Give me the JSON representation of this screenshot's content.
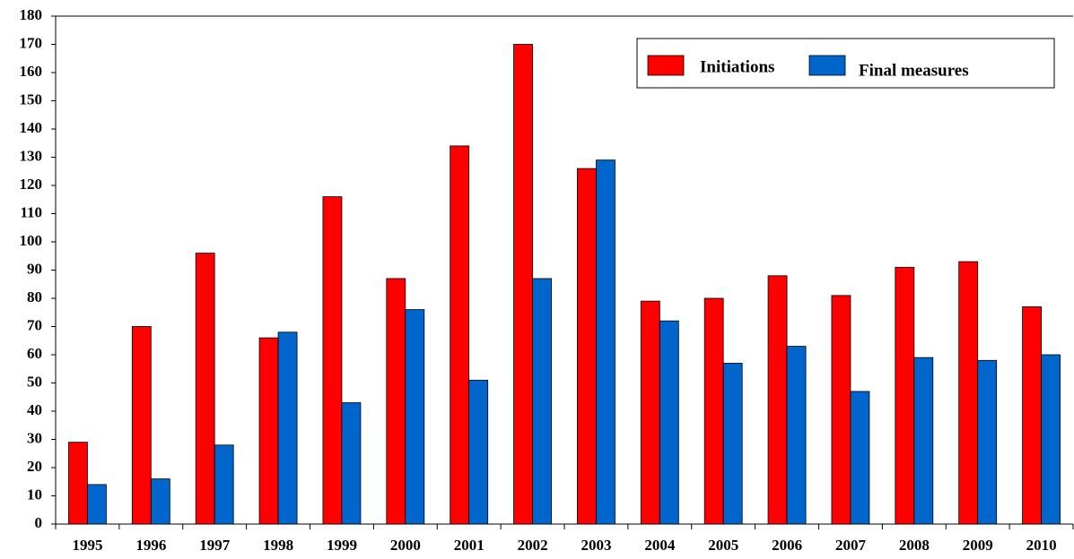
{
  "chart_data": {
    "type": "bar",
    "categories": [
      "1995",
      "1996",
      "1997",
      "1998",
      "1999",
      "2000",
      "2001",
      "2002",
      "2003",
      "2004",
      "2005",
      "2006",
      "2007",
      "2008",
      "2009",
      "2010"
    ],
    "series": [
      {
        "name": "Initiations",
        "color": "#ff0000",
        "values": [
          29,
          70,
          96,
          66,
          116,
          87,
          134,
          170,
          126,
          79,
          80,
          88,
          81,
          91,
          93,
          77
        ]
      },
      {
        "name": "Final measures",
        "color": "#0066cc",
        "values": [
          14,
          16,
          28,
          68,
          43,
          76,
          51,
          87,
          129,
          72,
          57,
          63,
          47,
          59,
          58,
          60
        ]
      }
    ],
    "ylim": [
      0,
      180
    ],
    "yticks": [
      0,
      10,
      20,
      30,
      40,
      50,
      60,
      70,
      80,
      90,
      100,
      110,
      120,
      130,
      140,
      150,
      160,
      170,
      180
    ],
    "grid": false,
    "legend": "top-right"
  }
}
